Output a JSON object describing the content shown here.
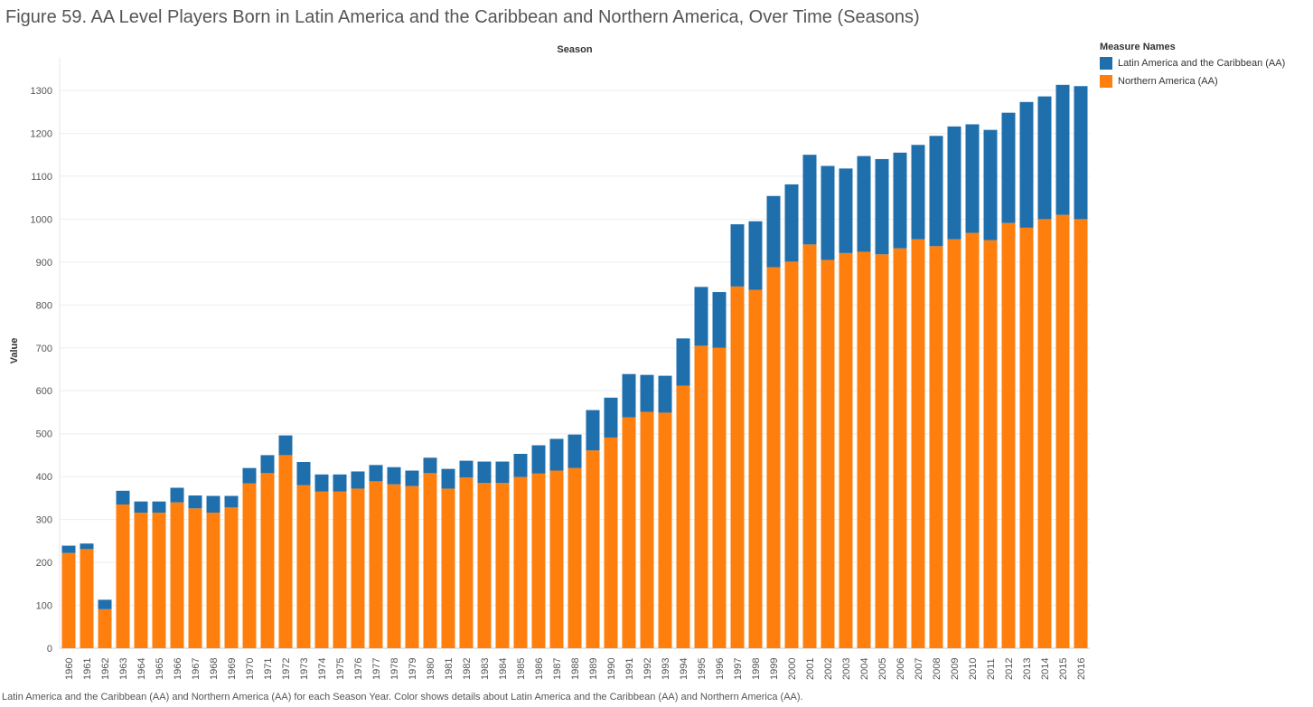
{
  "title": "Figure 59. AA Level Players Born in Latin America and the Caribbean and Northern America, Over Time (Seasons)",
  "caption": "Latin America and the Caribbean (AA) and Northern America (AA) for each Season Year.  Color shows details about Latin America and the Caribbean (AA) and Northern America (AA).",
  "legend": {
    "title": "Measure Names",
    "items": [
      {
        "label": "Latin America and the Caribbean (AA)",
        "color": "#1f6fad"
      },
      {
        "label": "Northern America (AA)",
        "color": "#fe7f0e"
      }
    ]
  },
  "chart_data": {
    "type": "bar",
    "stacked": true,
    "title": "Figure 59. AA Level Players Born in Latin America and the Caribbean and Northern America, Over Time (Seasons)",
    "xlabel": "Season",
    "ylabel": "Value",
    "ylim": [
      0,
      1350
    ],
    "yticks": [
      0,
      100,
      200,
      300,
      400,
      500,
      600,
      700,
      800,
      900,
      1000,
      1100,
      1200,
      1300
    ],
    "grid": true,
    "legend_position": "top-right",
    "categories": [
      "1960",
      "1961",
      "1962",
      "1963",
      "1964",
      "1965",
      "1966",
      "1967",
      "1968",
      "1969",
      "1970",
      "1971",
      "1972",
      "1973",
      "1974",
      "1975",
      "1976",
      "1977",
      "1978",
      "1979",
      "1980",
      "1981",
      "1982",
      "1983",
      "1984",
      "1985",
      "1986",
      "1987",
      "1988",
      "1989",
      "1990",
      "1991",
      "1992",
      "1993",
      "1994",
      "1995",
      "1996",
      "1997",
      "1998",
      "1999",
      "2000",
      "2001",
      "2002",
      "2003",
      "2004",
      "2005",
      "2006",
      "2007",
      "2008",
      "2009",
      "2010",
      "2011",
      "2012",
      "2013",
      "2014",
      "2015",
      "2016"
    ],
    "series": [
      {
        "name": "Northern America (AA)",
        "color": "#fe7f0e",
        "values": [
          222,
          231,
          91,
          335,
          316,
          316,
          340,
          326,
          316,
          328,
          384,
          408,
          450,
          380,
          365,
          365,
          372,
          389,
          382,
          378,
          408,
          372,
          398,
          385,
          385,
          399,
          407,
          414,
          420,
          461,
          491,
          538,
          551,
          549,
          612,
          705,
          700,
          843,
          835,
          888,
          901,
          941,
          905,
          921,
          924,
          918,
          932,
          953,
          937,
          953,
          968,
          951,
          991,
          980,
          1000,
          1010,
          1000
        ]
      },
      {
        "name": "Latin America and the Caribbean (AA)",
        "color": "#1f6fad",
        "values": [
          17,
          13,
          22,
          32,
          26,
          26,
          34,
          30,
          39,
          27,
          36,
          42,
          46,
          54,
          40,
          40,
          40,
          38,
          40,
          36,
          36,
          46,
          39,
          50,
          50,
          54,
          66,
          74,
          78,
          94,
          93,
          101,
          86,
          86,
          110,
          137,
          130,
          145,
          160,
          166,
          180,
          209,
          219,
          197,
          223,
          222,
          223,
          220,
          257,
          263,
          253,
          257,
          257,
          293,
          286,
          303,
          310
        ]
      }
    ]
  }
}
